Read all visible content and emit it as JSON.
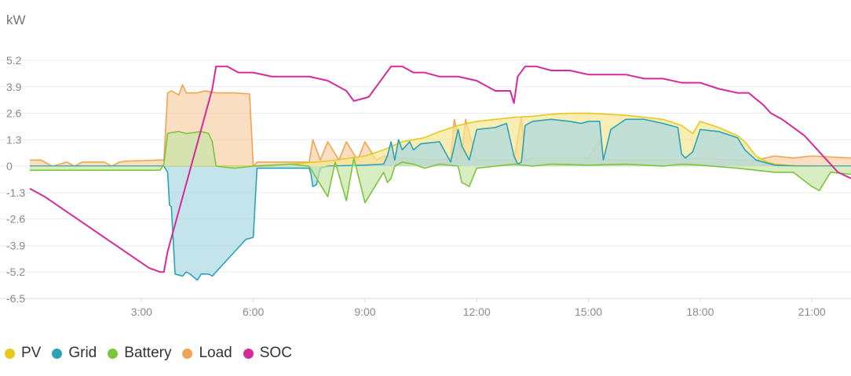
{
  "chart_data": {
    "type": "area",
    "ylabel": "kW",
    "y_ticks": [
      "5.2",
      "3.9",
      "2.6",
      "1.3",
      "0",
      "-1.3",
      "-2.6",
      "-3.9",
      "-5.2",
      "-6.5"
    ],
    "y_tick_values": [
      5.2,
      3.9,
      2.6,
      1.3,
      0,
      -1.3,
      -2.6,
      -3.9,
      -5.2,
      -6.5
    ],
    "ylim": [
      -6.5,
      5.2
    ],
    "x_ticks": [
      "3:00",
      "6:00",
      "9:00",
      "12:00",
      "15:00",
      "18:00",
      "21:00"
    ],
    "x_tick_values": [
      3,
      6,
      9,
      12,
      15,
      18,
      21
    ],
    "xlim": [
      0,
      22.05
    ],
    "grid": true,
    "legend_position": "bottom-left",
    "series": [
      {
        "name": "PV",
        "color": "#e8c81e",
        "fill": "#f5e691",
        "x": [
          0,
          6.5,
          7.0,
          8.0,
          9.0,
          9.5,
          10.0,
          10.3,
          10.6,
          11.0,
          11.5,
          12.0,
          12.5,
          13.0,
          13.5,
          14.0,
          14.5,
          15.0,
          15.5,
          16.0,
          16.5,
          17.0,
          17.5,
          17.8,
          18.0,
          18.5,
          19.0,
          19.2,
          19.5,
          19.8,
          20.0,
          20.5,
          21.0,
          22.05
        ],
        "values": [
          0,
          0,
          0.1,
          0.25,
          0.5,
          0.8,
          1.2,
          1.3,
          1.4,
          1.7,
          2.0,
          2.2,
          2.3,
          2.4,
          2.45,
          2.55,
          2.6,
          2.6,
          2.55,
          2.5,
          2.4,
          2.3,
          2.0,
          1.6,
          2.2,
          1.9,
          1.5,
          1.2,
          0.5,
          0.2,
          0.1,
          0.03,
          0,
          0
        ]
      },
      {
        "name": "Grid",
        "color": "#2aa3b7",
        "fill": "#a9d9e3",
        "x": [
          0,
          3.5,
          3.6,
          3.7,
          3.75,
          3.8,
          3.9,
          4.1,
          4.2,
          4.3,
          4.5,
          4.6,
          4.8,
          4.9,
          5.0,
          5.5,
          5.8,
          6.0,
          6.1,
          7.5,
          7.55,
          7.6,
          7.7,
          7.8,
          8.0,
          9.0,
          9.5,
          9.6,
          9.7,
          9.8,
          9.9,
          10.0,
          10.2,
          10.3,
          10.5,
          11.0,
          11.3,
          11.5,
          11.6,
          11.8,
          12.0,
          12.5,
          12.8,
          13.0,
          13.1,
          13.2,
          13.3,
          13.5,
          14.0,
          14.5,
          14.8,
          15.0,
          15.3,
          15.4,
          15.6,
          16.0,
          16.5,
          17.0,
          17.4,
          17.5,
          17.6,
          17.8,
          18.0,
          18.5,
          19.0,
          19.2,
          19.5,
          20.0,
          20.5,
          21.0,
          22.05
        ],
        "values": [
          0,
          0,
          0,
          -0.3,
          -1.9,
          -2.0,
          -5.3,
          -5.4,
          -5.2,
          -5.3,
          -5.6,
          -5.3,
          -5.3,
          -5.4,
          -5.2,
          -4.2,
          -3.6,
          -3.5,
          -0.1,
          -0.1,
          -0.4,
          -1.0,
          -0.9,
          -0.1,
          0,
          0.05,
          0.1,
          0.5,
          1.2,
          0.3,
          1.3,
          0.8,
          1.2,
          0.8,
          1.1,
          1.2,
          0.2,
          1.8,
          1.0,
          0.3,
          1.8,
          1.9,
          2.1,
          0.5,
          0.1,
          0.2,
          2.0,
          2.2,
          2.3,
          2.2,
          2.1,
          2.2,
          2.2,
          0.3,
          1.8,
          2.3,
          2.3,
          2.1,
          1.9,
          0.6,
          0.4,
          0.7,
          1.8,
          1.7,
          1.4,
          0.8,
          0.3,
          0.05,
          0,
          0,
          0
        ]
      },
      {
        "name": "Battery",
        "color": "#7cc43d",
        "fill": "#c8e6a6",
        "x": [
          0,
          3.5,
          3.6,
          3.7,
          3.8,
          4.0,
          4.2,
          4.4,
          4.6,
          4.8,
          4.9,
          5.0,
          5.5,
          6.0,
          7.0,
          7.5,
          8.0,
          8.2,
          8.5,
          8.7,
          9.0,
          9.5,
          9.6,
          9.7,
          9.8,
          10.0,
          10.3,
          10.6,
          11.0,
          11.5,
          11.6,
          11.8,
          12.0,
          12.5,
          13.0,
          13.5,
          14.0,
          15.0,
          16.0,
          17.0,
          17.5,
          18.0,
          19.0,
          19.5,
          20.0,
          20.5,
          21.0,
          21.2,
          21.5,
          22.05
        ],
        "values": [
          -0.2,
          -0.2,
          0.1,
          1.6,
          1.65,
          1.7,
          1.6,
          1.65,
          1.7,
          1.6,
          1.2,
          0,
          -0.1,
          0,
          0.1,
          0,
          -1.5,
          0.2,
          -1.7,
          0.4,
          -1.8,
          -0.3,
          -0.8,
          -0.6,
          0,
          0.2,
          0.1,
          -0.1,
          0.1,
          0,
          -0.8,
          -1.0,
          -0.1,
          0,
          0.1,
          0,
          0.1,
          0.05,
          0.1,
          0,
          0.1,
          0.05,
          -0.1,
          -0.2,
          -0.3,
          -0.3,
          -1.0,
          -1.2,
          -0.3,
          -0.4
        ]
      },
      {
        "name": "Load",
        "color": "#f0a552",
        "fill": "#f8d0a8",
        "x": [
          0,
          0.3,
          0.6,
          1.0,
          1.2,
          1.4,
          2.0,
          2.2,
          2.4,
          2.6,
          3.5,
          3.6,
          3.7,
          3.8,
          4.0,
          4.1,
          4.2,
          4.3,
          4.5,
          4.7,
          5.0,
          5.5,
          5.9,
          6.0,
          6.1,
          7.5,
          7.6,
          7.8,
          8.0,
          8.3,
          8.5,
          8.8,
          9.0,
          9.3,
          9.5,
          10.0,
          11.0,
          11.3,
          11.4,
          11.6,
          11.7,
          12.0,
          13.0,
          13.2,
          13.3,
          13.5,
          15.0,
          15.3,
          15.4,
          15.6,
          16.0,
          17.0,
          18.0,
          19.0,
          19.5,
          20.0,
          20.5,
          21.0,
          22.05
        ],
        "values": [
          0.3,
          0.3,
          0,
          0.2,
          0,
          0.2,
          0.2,
          0,
          0.2,
          0.25,
          0.3,
          0.3,
          3.6,
          3.7,
          3.5,
          4.0,
          3.6,
          3.6,
          3.6,
          3.7,
          3.6,
          3.6,
          3.55,
          0,
          0.2,
          0.2,
          1.3,
          0.3,
          1.2,
          0.3,
          1.2,
          0.3,
          1.2,
          0.3,
          0.5,
          0.4,
          0.3,
          0.4,
          2.3,
          0.5,
          2.3,
          0.3,
          0.3,
          2.4,
          0.3,
          0.4,
          0.4,
          1.3,
          0.4,
          0.3,
          0.3,
          0.3,
          0.4,
          0.3,
          0.3,
          0.5,
          0.4,
          0.5,
          0.4
        ]
      },
      {
        "name": "SOC",
        "color": "#d52a9a",
        "fill": "none",
        "x": [
          0,
          0.4,
          0.8,
          1.2,
          1.6,
          2.0,
          2.4,
          2.8,
          3.2,
          3.5,
          3.6,
          3.7,
          4.0,
          4.3,
          4.6,
          4.9,
          5.0,
          5.3,
          5.6,
          6.0,
          6.5,
          7.0,
          7.5,
          8.0,
          8.5,
          8.7,
          8.9,
          9.1,
          9.3,
          9.5,
          9.7,
          9.9,
          10.0,
          10.3,
          10.6,
          11.0,
          11.5,
          12.0,
          12.5,
          12.9,
          13.0,
          13.1,
          13.3,
          13.6,
          14.0,
          14.5,
          15.0,
          15.5,
          16.0,
          16.5,
          17.0,
          17.5,
          18.0,
          18.5,
          19.0,
          19.3,
          19.5,
          19.7,
          19.9,
          20.2,
          20.5,
          20.8,
          21.1,
          21.4,
          21.7,
          22.05
        ],
        "values": [
          -1.1,
          -1.5,
          -2.0,
          -2.5,
          -3.0,
          -3.5,
          -4.0,
          -4.5,
          -5.0,
          -5.2,
          -5.2,
          -4.2,
          -2.2,
          -0.2,
          1.8,
          3.8,
          4.9,
          4.9,
          4.6,
          4.6,
          4.4,
          4.4,
          4.4,
          4.2,
          3.7,
          3.2,
          3.3,
          3.4,
          3.9,
          4.4,
          4.9,
          4.9,
          4.9,
          4.6,
          4.6,
          4.4,
          4.4,
          4.2,
          3.7,
          3.7,
          3.1,
          4.4,
          4.9,
          4.9,
          4.7,
          4.7,
          4.5,
          4.5,
          4.5,
          4.3,
          4.3,
          4.1,
          4.1,
          3.8,
          3.6,
          3.6,
          3.3,
          3.0,
          2.6,
          2.3,
          1.9,
          1.5,
          0.9,
          0.3,
          -0.3,
          -0.6
        ]
      }
    ]
  }
}
